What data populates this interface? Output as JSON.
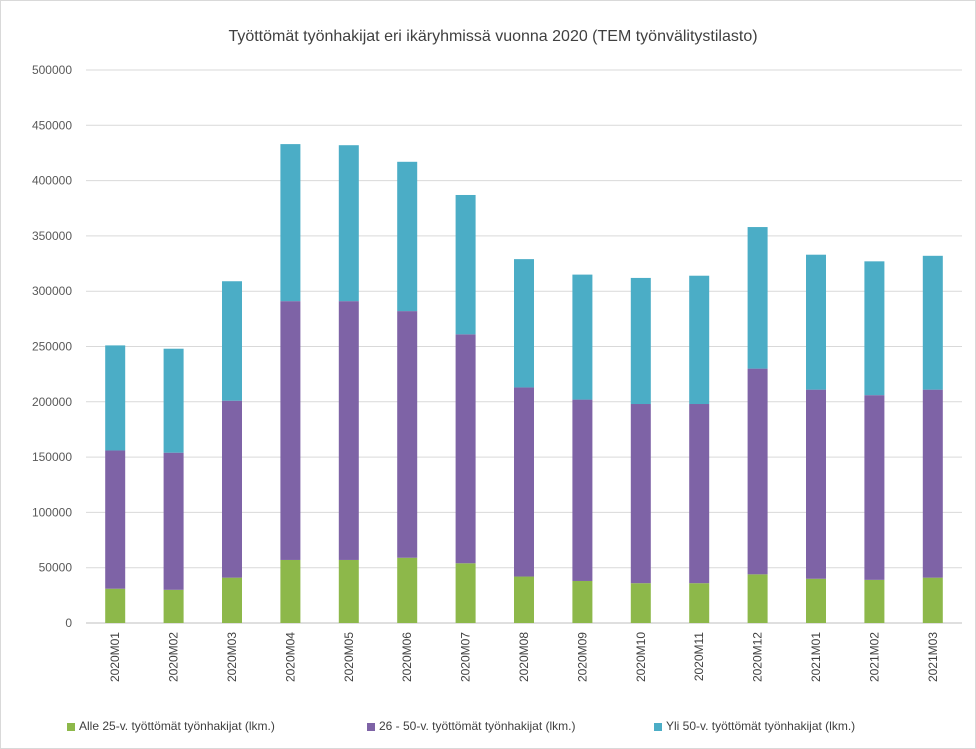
{
  "chart_data": {
    "type": "bar",
    "stacked": true,
    "title": "Työttömät työnhakijat eri ikäryhmissä vuonna 2020 (TEM työnvälitystilasto)",
    "xlabel": "",
    "ylabel": "",
    "ylim": [
      0,
      500000
    ],
    "y_ticks": [
      0,
      50000,
      100000,
      150000,
      200000,
      250000,
      300000,
      350000,
      400000,
      450000,
      500000
    ],
    "grid": true,
    "legend_position": "bottom",
    "categories": [
      "2020M01",
      "2020M02",
      "2020M03",
      "2020M04",
      "2020M05",
      "2020M06",
      "2020M07",
      "2020M08",
      "2020M09",
      "2020M10",
      "2020M11",
      "2020M12",
      "2021M01",
      "2021M02",
      "2021M03"
    ],
    "series": [
      {
        "name": "Alle 25-v. työttömät työnhakijat (lkm.)",
        "color": "#8db84a",
        "values": [
          31000,
          30000,
          41000,
          57000,
          57000,
          59000,
          54000,
          42000,
          38000,
          36000,
          36000,
          44000,
          40000,
          39000,
          41000
        ]
      },
      {
        "name": "26 - 50-v. työttömät työnhakijat (lkm.)",
        "color": "#7e63a6",
        "values": [
          125000,
          124000,
          160000,
          234000,
          234000,
          223000,
          207000,
          171000,
          164000,
          162000,
          162000,
          186000,
          171000,
          167000,
          170000
        ]
      },
      {
        "name": "Yli 50-v. työttömät työnhakijat (lkm.)",
        "color": "#4badc6",
        "values": [
          95000,
          94000,
          108000,
          142000,
          141000,
          135000,
          126000,
          116000,
          113000,
          114000,
          116000,
          128000,
          122000,
          121000,
          121000
        ]
      }
    ]
  }
}
